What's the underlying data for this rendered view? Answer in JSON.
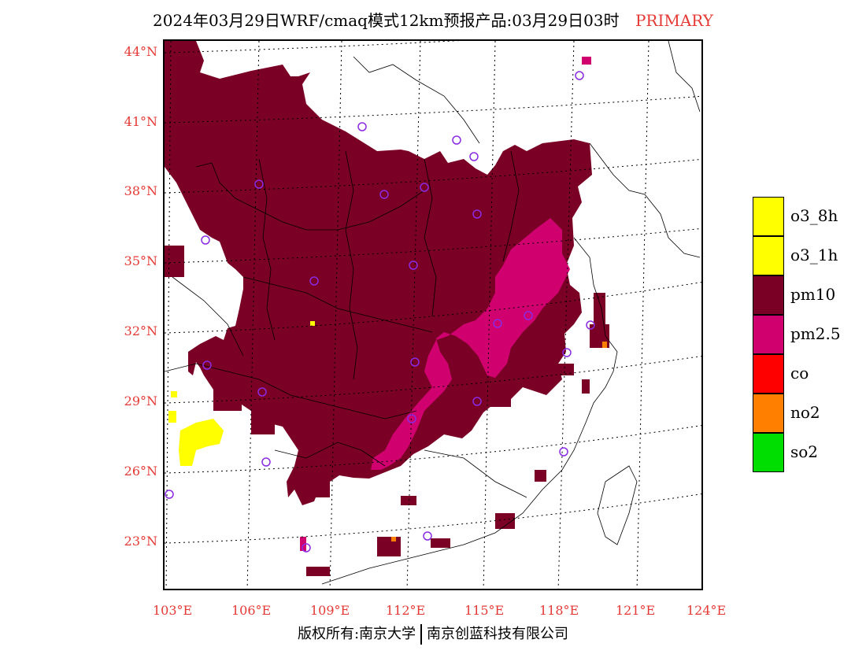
{
  "title": "2024年03月29日WRF/cmaq模式12km预报产品:03月29日03时",
  "title_tag": "PRIMARY",
  "latitude_labels": [
    "44°N",
    "41°N",
    "38°N",
    "35°N",
    "32°N",
    "29°N",
    "26°N",
    "23°N"
  ],
  "longitude_labels": [
    "103°E",
    "106°E",
    "109°E",
    "112°E",
    "115°E",
    "118°E",
    "121°E",
    "124°E"
  ],
  "legend": [
    {
      "label": "o3_8h",
      "color": "#ffff00"
    },
    {
      "label": "o3_1h",
      "color": "#ffff00"
    },
    {
      "label": "pm10",
      "color": "#7a0026"
    },
    {
      "label": "pm2.5",
      "color": "#d0006f"
    },
    {
      "label": "co",
      "color": "#ff0000"
    },
    {
      "label": "no2",
      "color": "#ff7f00"
    },
    {
      "label": "so2",
      "color": "#00dd00"
    }
  ],
  "footer": {
    "left": "版权所有:南京大学",
    "right": "南京创蓝科技有限公司"
  },
  "colors": {
    "label_red": "#e53935",
    "pm10": "#7a0026",
    "pm25": "#d0006f",
    "station_marker": "#8a2be2"
  }
}
